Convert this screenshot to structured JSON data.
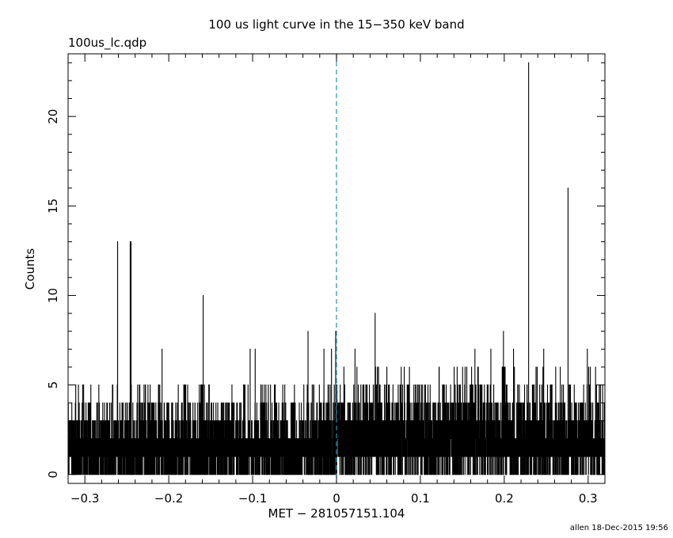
{
  "title": "100 us light curve in the 15−350 keV band",
  "subtitle": "100us_lc.qdp",
  "footer": "allen 18-Dec-2015 19:56",
  "colors": {
    "data": "#000000",
    "marker": "#1f8fbf",
    "axes": "#000000"
  },
  "chart_data": {
    "type": "line",
    "xlabel": "MET − 281057151.104",
    "ylabel": "Counts",
    "xlim": [
      -0.32,
      0.32
    ],
    "ylim": [
      -0.5,
      23.5
    ],
    "xticks": [
      -0.3,
      -0.2,
      -0.1,
      0,
      0.1,
      0.2,
      0.3
    ],
    "xtick_labels": [
      "−0.3",
      "−0.2",
      "−0.1",
      "0",
      "0.1",
      "0.2",
      "0.3"
    ],
    "yticks": [
      0,
      5,
      10,
      15,
      20
    ],
    "ytick_labels": [
      "0",
      "5",
      "10",
      "15",
      "20"
    ],
    "bin_width_s": 0.0001,
    "baseline": {
      "before_zero": {
        "mean": 1.5,
        "min": 0,
        "max": 5
      },
      "after_zero": {
        "mean": 2.0,
        "min": 0,
        "max": 6
      }
    },
    "spikes": [
      {
        "x": -0.261,
        "y": 13
      },
      {
        "x": -0.246,
        "y": 13
      },
      {
        "x": -0.245,
        "y": 13
      },
      {
        "x": -0.159,
        "y": 10
      },
      {
        "x": -0.208,
        "y": 7
      },
      {
        "x": -0.103,
        "y": 7
      },
      {
        "x": -0.097,
        "y": 7
      },
      {
        "x": -0.034,
        "y": 8
      },
      {
        "x": -0.015,
        "y": 7
      },
      {
        "x": -0.006,
        "y": 7
      },
      {
        "x": -0.001,
        "y": 8
      },
      {
        "x": 0.046,
        "y": 9
      },
      {
        "x": 0.022,
        "y": 7
      },
      {
        "x": 0.165,
        "y": 7
      },
      {
        "x": 0.184,
        "y": 7
      },
      {
        "x": 0.199,
        "y": 8
      },
      {
        "x": 0.211,
        "y": 7
      },
      {
        "x": 0.229,
        "y": 23
      },
      {
        "x": 0.247,
        "y": 7
      },
      {
        "x": 0.276,
        "y": 16
      },
      {
        "x": 0.299,
        "y": 7
      }
    ],
    "vertical_marker": {
      "x": 0,
      "style": "dashed"
    },
    "grid": false,
    "legend": "none"
  }
}
